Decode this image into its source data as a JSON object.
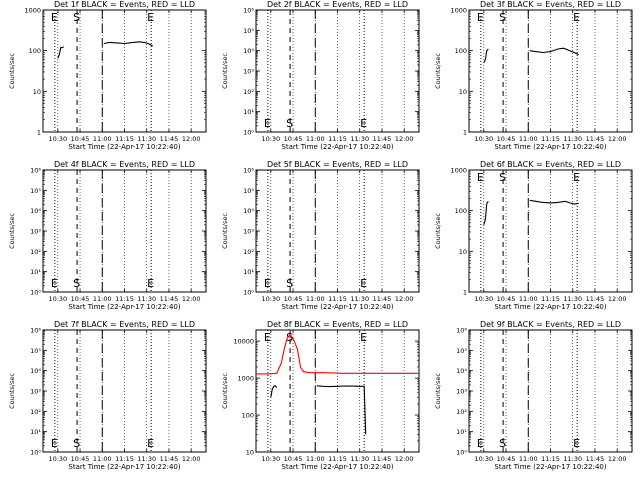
{
  "chart_data": [
    {
      "type": "line",
      "title": "Det 1f BLACK = Events, RED = LLD",
      "xlabel": "Start Time (22-Apr-17 10:22:40)",
      "ylabel": "Counts/sec",
      "y_scale": "log",
      "ylim": [
        1,
        1000
      ],
      "y_ticks": [
        "1",
        "10",
        "100",
        "1000"
      ],
      "x_ticks": [
        "10:30",
        "10:45",
        "11:00",
        "11:15",
        "11:30",
        "11:45",
        "12:00"
      ],
      "xlim_minutes": [
        620,
        730
      ],
      "markers": [
        {
          "label": "E",
          "time_min": 628,
          "style": "dotted",
          "label_at": "top"
        },
        {
          "label": "S",
          "time_min": 643,
          "style": "dashed",
          "label_at": "top"
        },
        {
          "label": "",
          "time_min": 660,
          "style": "longdash",
          "label_at": "top"
        },
        {
          "label": "E",
          "time_min": 693,
          "style": "dotted",
          "label_at": "top"
        }
      ],
      "series": [
        {
          "color": "#000000",
          "segments": [
            [
              [
                630,
                65
              ],
              [
                631,
                80
              ],
              [
                632,
                120
              ],
              [
                633,
                118
              ],
              [
                634,
                125
              ]
            ],
            [
              [
                661,
                150
              ],
              [
                665,
                160
              ],
              [
                670,
                155
              ],
              [
                675,
                150
              ],
              [
                680,
                158
              ],
              [
                685,
                165
              ],
              [
                688,
                160
              ],
              [
                691,
                150
              ],
              [
                694,
                130
              ]
            ]
          ]
        }
      ]
    },
    {
      "type": "line",
      "title": "Det 2f BLACK = Events, RED = LLD",
      "xlabel": "Start Time (22-Apr-17 10:22:40)",
      "ylabel": "Counts/sec",
      "y_scale": "log",
      "ylim": [
        1,
        1000000
      ],
      "y_ticks": [
        "10⁰",
        "10¹",
        "10²",
        "10³",
        "10⁴",
        "10⁵",
        "10⁶"
      ],
      "x_ticks": [
        "10:30",
        "10:45",
        "11:00",
        "11:15",
        "11:30",
        "11:45",
        "12:00"
      ],
      "xlim_minutes": [
        620,
        730
      ],
      "markers": [
        {
          "label": "E",
          "time_min": 628,
          "style": "dotted",
          "label_at": "bottom"
        },
        {
          "label": "S",
          "time_min": 643,
          "style": "dashed",
          "label_at": "bottom"
        },
        {
          "label": "",
          "time_min": 660,
          "style": "longdash",
          "label_at": "bottom"
        },
        {
          "label": "E",
          "time_min": 693,
          "style": "dotted",
          "label_at": "bottom"
        }
      ],
      "series": []
    },
    {
      "type": "line",
      "title": "Det 3f BLACK = Events, RED = LLD",
      "xlabel": "Start Time (22-Apr-17 10:22:40)",
      "ylabel": "Counts/sec",
      "y_scale": "log",
      "ylim": [
        1,
        1000
      ],
      "y_ticks": [
        "1",
        "10",
        "100",
        "1000"
      ],
      "x_ticks": [
        "10:30",
        "10:45",
        "11:00",
        "11:15",
        "11:30",
        "11:45",
        "12:00"
      ],
      "xlim_minutes": [
        620,
        730
      ],
      "markers": [
        {
          "label": "E",
          "time_min": 628,
          "style": "dotted",
          "label_at": "top"
        },
        {
          "label": "S",
          "time_min": 643,
          "style": "dashed",
          "label_at": "top"
        },
        {
          "label": "",
          "time_min": 660,
          "style": "longdash",
          "label_at": "top"
        },
        {
          "label": "E",
          "time_min": 693,
          "style": "dotted",
          "label_at": "top"
        }
      ],
      "series": [
        {
          "color": "#000000",
          "segments": [
            [
              [
                630,
                50
              ],
              [
                631,
                60
              ],
              [
                632,
                100
              ],
              [
                633,
                110
              ]
            ],
            [
              [
                661,
                100
              ],
              [
                665,
                95
              ],
              [
                670,
                90
              ],
              [
                675,
                95
              ],
              [
                680,
                110
              ],
              [
                684,
                115
              ],
              [
                688,
                100
              ],
              [
                691,
                90
              ],
              [
                694,
                80
              ]
            ]
          ]
        }
      ]
    },
    {
      "type": "line",
      "title": "Det 4f BLACK = Events, RED = LLD",
      "xlabel": "Start Time (22-Apr-17 10:22:40)",
      "ylabel": "Counts/sec",
      "y_scale": "log",
      "ylim": [
        1,
        1000000
      ],
      "y_ticks": [
        "10⁰",
        "10¹",
        "10²",
        "10³",
        "10⁴",
        "10⁵",
        "10⁶"
      ],
      "x_ticks": [
        "10:30",
        "10:45",
        "11:00",
        "11:15",
        "11:30",
        "11:45",
        "12:00"
      ],
      "xlim_minutes": [
        620,
        730
      ],
      "markers": [
        {
          "label": "E",
          "time_min": 628,
          "style": "dotted",
          "label_at": "bottom"
        },
        {
          "label": "S",
          "time_min": 643,
          "style": "dashed",
          "label_at": "bottom"
        },
        {
          "label": "",
          "time_min": 660,
          "style": "longdash",
          "label_at": "bottom"
        },
        {
          "label": "E",
          "time_min": 693,
          "style": "dotted",
          "label_at": "bottom"
        }
      ],
      "series": []
    },
    {
      "type": "line",
      "title": "Det 5f BLACK = Events, RED = LLD",
      "xlabel": "Start Time (22-Apr-17 10:22:40)",
      "ylabel": "Counts/sec",
      "y_scale": "log",
      "ylim": [
        1,
        1000000
      ],
      "y_ticks": [
        "10⁰",
        "10¹",
        "10²",
        "10³",
        "10⁴",
        "10⁵",
        "10⁶"
      ],
      "x_ticks": [
        "10:30",
        "10:45",
        "11:00",
        "11:15",
        "11:30",
        "11:45",
        "12:00"
      ],
      "xlim_minutes": [
        620,
        730
      ],
      "markers": [
        {
          "label": "E",
          "time_min": 628,
          "style": "dotted",
          "label_at": "bottom"
        },
        {
          "label": "S",
          "time_min": 643,
          "style": "dashed",
          "label_at": "bottom"
        },
        {
          "label": "",
          "time_min": 660,
          "style": "longdash",
          "label_at": "bottom"
        },
        {
          "label": "E",
          "time_min": 693,
          "style": "dotted",
          "label_at": "bottom"
        }
      ],
      "series": []
    },
    {
      "type": "line",
      "title": "Det 6f BLACK = Events, RED = LLD",
      "xlabel": "Start Time (22-Apr-17 10:22:40)",
      "ylabel": "Counts/sec",
      "y_scale": "log",
      "ylim": [
        1,
        1000
      ],
      "y_ticks": [
        "1",
        "10",
        "100",
        "1000"
      ],
      "x_ticks": [
        "10:30",
        "10:45",
        "11:00",
        "11:15",
        "11:30",
        "11:45",
        "12:00"
      ],
      "xlim_minutes": [
        620,
        730
      ],
      "markers": [
        {
          "label": "E",
          "time_min": 628,
          "style": "dotted",
          "label_at": "top"
        },
        {
          "label": "S",
          "time_min": 643,
          "style": "dashed",
          "label_at": "top"
        },
        {
          "label": "",
          "time_min": 660,
          "style": "longdash",
          "label_at": "top"
        },
        {
          "label": "E",
          "time_min": 693,
          "style": "dotted",
          "label_at": "top"
        }
      ],
      "series": [
        {
          "color": "#000000",
          "segments": [
            [
              [
                630,
                45
              ],
              [
                631,
                60
              ],
              [
                632,
                150
              ],
              [
                633,
                170
              ]
            ],
            [
              [
                661,
                180
              ],
              [
                665,
                170
              ],
              [
                670,
                160
              ],
              [
                675,
                155
              ],
              [
                680,
                160
              ],
              [
                685,
                170
              ],
              [
                688,
                155
              ],
              [
                691,
                145
              ],
              [
                694,
                150
              ]
            ]
          ]
        }
      ]
    },
    {
      "type": "line",
      "title": "Det 7f BLACK = Events, RED = LLD",
      "xlabel": "Start Time (22-Apr-17 10:22:40)",
      "ylabel": "Counts/sec",
      "y_scale": "log",
      "ylim": [
        1,
        1000000
      ],
      "y_ticks": [
        "10⁰",
        "10¹",
        "10²",
        "10³",
        "10⁴",
        "10⁵",
        "10⁶"
      ],
      "x_ticks": [
        "10:30",
        "10:45",
        "11:00",
        "11:15",
        "11:30",
        "11:45",
        "12:00"
      ],
      "xlim_minutes": [
        620,
        730
      ],
      "markers": [
        {
          "label": "E",
          "time_min": 628,
          "style": "dotted",
          "label_at": "bottom"
        },
        {
          "label": "S",
          "time_min": 643,
          "style": "dashed",
          "label_at": "bottom"
        },
        {
          "label": "",
          "time_min": 660,
          "style": "longdash",
          "label_at": "bottom"
        },
        {
          "label": "E",
          "time_min": 693,
          "style": "dotted",
          "label_at": "bottom"
        }
      ],
      "series": []
    },
    {
      "type": "line",
      "title": "Det 8f BLACK = Events, RED = LLD",
      "xlabel": "Start Time (22-Apr-17 10:22:40)",
      "ylabel": "Counts/sec",
      "y_scale": "log",
      "ylim": [
        10,
        20000
      ],
      "y_ticks": [
        "10",
        "100",
        "1000",
        "10000"
      ],
      "x_ticks": [
        "10:30",
        "10:45",
        "11:00",
        "11:15",
        "11:30",
        "11:45",
        "12:00"
      ],
      "xlim_minutes": [
        620,
        730
      ],
      "markers": [
        {
          "label": "E",
          "time_min": 628,
          "style": "dotted",
          "label_at": "top"
        },
        {
          "label": "S",
          "time_min": 643,
          "style": "dashed",
          "label_at": "top"
        },
        {
          "label": "",
          "time_min": 660,
          "style": "longdash",
          "label_at": "top"
        },
        {
          "label": "E",
          "time_min": 693,
          "style": "dotted",
          "label_at": "top"
        }
      ],
      "series": [
        {
          "color": "#000000",
          "segments": [
            [
              [
                630,
                300
              ],
              [
                631,
                500
              ],
              [
                632,
                600
              ],
              [
                633,
                620
              ],
              [
                634,
                550
              ]
            ],
            [
              [
                661,
                620
              ],
              [
                665,
                600
              ],
              [
                670,
                590
              ],
              [
                675,
                600
              ],
              [
                680,
                610
              ],
              [
                685,
                605
              ],
              [
                690,
                600
              ],
              [
                693,
                600
              ],
              [
                694,
                30
              ]
            ]
          ]
        },
        {
          "color": "#ff0000",
          "segments": [
            [
              [
                620,
                1300
              ],
              [
                628,
                1300
              ],
              [
                634,
                1350
              ],
              [
                637,
                2500
              ],
              [
                639,
                6000
              ],
              [
                641,
                12000
              ],
              [
                643,
                15000
              ],
              [
                645,
                12000
              ],
              [
                648,
                6000
              ],
              [
                650,
                2000
              ],
              [
                652,
                1500
              ],
              [
                656,
                1400
              ],
              [
                665,
                1400
              ],
              [
                680,
                1350
              ],
              [
                700,
                1350
              ],
              [
                730,
                1350
              ]
            ]
          ]
        }
      ]
    },
    {
      "type": "line",
      "title": "Det 9f BLACK = Events, RED = LLD",
      "xlabel": "Start Time (22-Apr-17 10:22:40)",
      "ylabel": "Counts/sec",
      "y_scale": "log",
      "ylim": [
        1,
        1000000
      ],
      "y_ticks": [
        "10⁰",
        "10¹",
        "10²",
        "10³",
        "10⁴",
        "10⁵",
        "10⁶"
      ],
      "x_ticks": [
        "10:30",
        "10:45",
        "11:00",
        "11:15",
        "11:30",
        "11:45",
        "12:00"
      ],
      "xlim_minutes": [
        620,
        730
      ],
      "markers": [
        {
          "label": "E",
          "time_min": 628,
          "style": "dotted",
          "label_at": "bottom"
        },
        {
          "label": "S",
          "time_min": 643,
          "style": "dashed",
          "label_at": "bottom"
        },
        {
          "label": "",
          "time_min": 660,
          "style": "longdash",
          "label_at": "bottom"
        },
        {
          "label": "E",
          "time_min": 693,
          "style": "dotted",
          "label_at": "bottom"
        }
      ],
      "series": []
    }
  ]
}
